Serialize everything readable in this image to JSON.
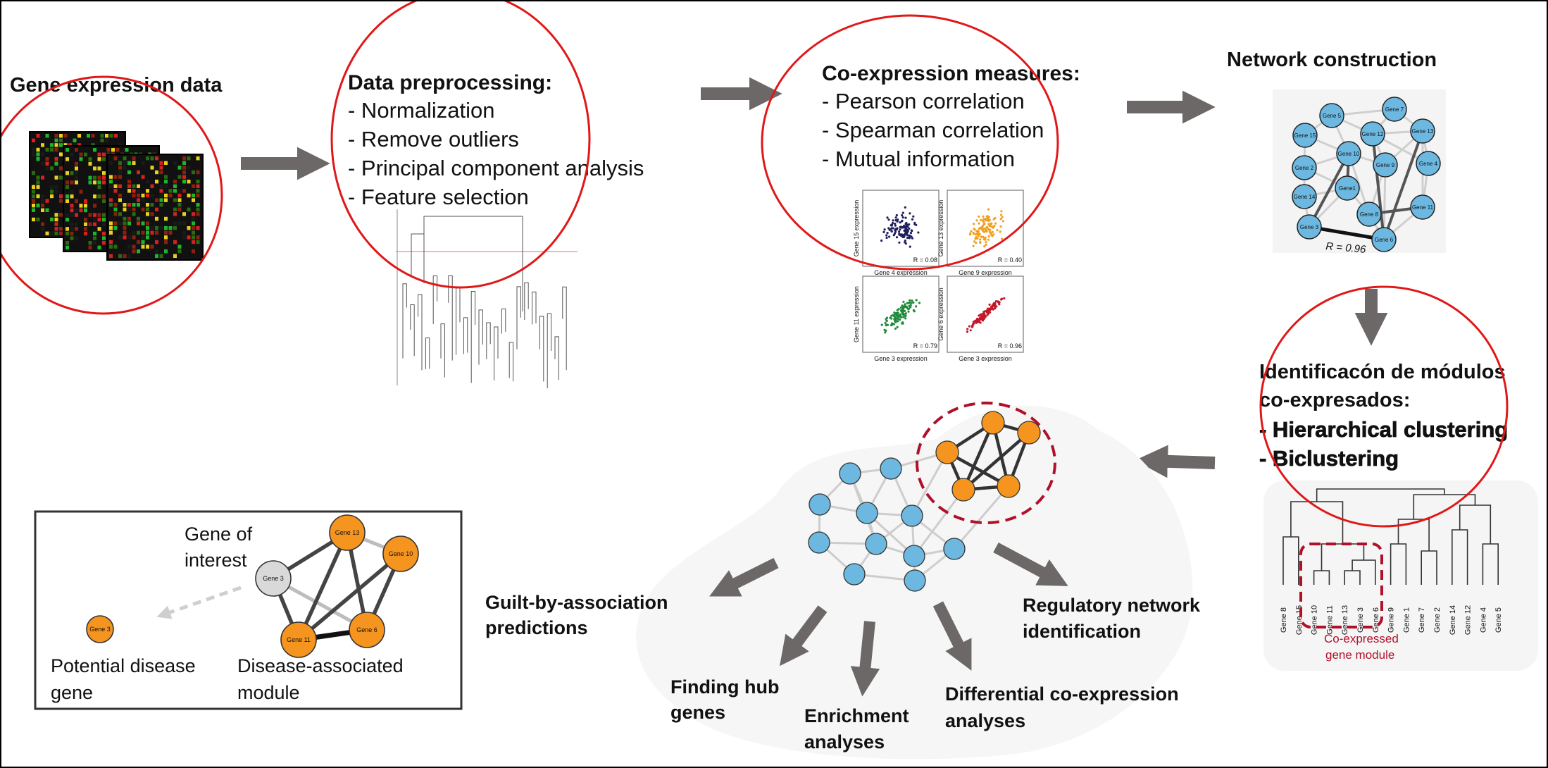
{
  "steps": {
    "gene_expression": {
      "title": "Gene expression data"
    },
    "preprocessing": {
      "title": "Data preprocessing:",
      "items": [
        "- Normalization",
        "- Remove outliers",
        "- Principal component analysis",
        "- Feature selection"
      ]
    },
    "coexpression": {
      "title": "Co-expression measures:",
      "items": [
        "- Pearson correlation",
        "- Spearman correlation",
        "- Mutual information"
      ]
    },
    "network": {
      "title": "Network construction",
      "edge_label": "R = 0.96"
    },
    "modules": {
      "title_line1": "Identificacón de módulos",
      "title_line2": "co-expresados:",
      "items": [
        "- Hierarchical clustering",
        "- Biclustering"
      ]
    }
  },
  "scatter_panels": [
    {
      "ylabel": "Gene 15 expression",
      "xlabel": "Gene 4 expression",
      "r": "R = 0.08",
      "color": "#1f1f5e"
    },
    {
      "ylabel": "Gene 13 expression",
      "xlabel": "Gene 9 expression",
      "r": "R = 0.40",
      "color": "#f0a020"
    },
    {
      "ylabel": "Gene 11 expression",
      "xlabel": "Gene 3 expression",
      "r": "R = 0.79",
      "color": "#1f8a3a"
    },
    {
      "ylabel": "Gene 6 expression",
      "xlabel": "Gene 3 expression",
      "r": "R = 0.96",
      "color": "#c0182a"
    }
  ],
  "network_nodes": [
    "Gene 5",
    "Gene 7",
    "Gene 15",
    "Gene 12",
    "Gene 13",
    "Gene 10",
    "Gene 9",
    "Gene 4",
    "Gene 2",
    "Gene1",
    "Gene 14",
    "Gene 8",
    "Gene 11",
    "Gene 3",
    "Gene 6"
  ],
  "dendrogram_leaves": [
    "Gene 8",
    "Gene 15",
    "Gene 10",
    "Gene 11",
    "Gene 13",
    "Gene 3",
    "Gene 6",
    "Gene 9",
    "Gene 1",
    "Gene 7",
    "Gene 2",
    "Gene 14",
    "Gene 12",
    "Gene 4",
    "Gene 5"
  ],
  "module_label": [
    "Co-expressed",
    "gene module"
  ],
  "applications": {
    "guilt": [
      "Guilt-by-association",
      "predictions"
    ],
    "hub": [
      "Finding hub",
      "genes"
    ],
    "enrichment": [
      "Enrichment",
      "analyses"
    ],
    "differential": [
      "Differential co-expression",
      "analyses"
    ],
    "regulatory": [
      "Regulatory network",
      "identification"
    ]
  },
  "inset": {
    "gene_of_interest": [
      "Gene of",
      "interest"
    ],
    "potential": [
      "Potential disease",
      "gene"
    ],
    "module": [
      "Disease-associated",
      "module"
    ],
    "nodes": [
      "Gene 13",
      "Gene 10",
      "Gene 3",
      "Gene 11",
      "Gene 6",
      "Gene 3"
    ]
  },
  "colors": {
    "circle": "#e01818",
    "arrow": "#6d6868",
    "node_blue": "#6cb8e0",
    "node_orange": "#f5951f",
    "module_dash": "#b0102a"
  }
}
